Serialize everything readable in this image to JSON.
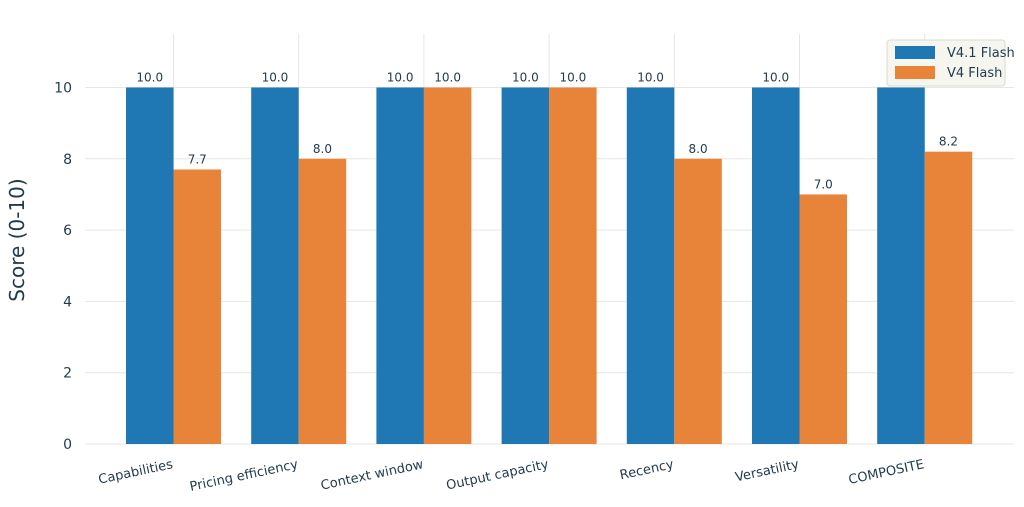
{
  "chart_data": {
    "type": "bar",
    "categories": [
      "Capabilities",
      "Pricing efficiency",
      "Context window",
      "Output capacity",
      "Recency",
      "Versatility",
      "COMPOSITE"
    ],
    "series": [
      {
        "name": "V4.1 Flash",
        "color": "#1f77b4",
        "values": [
          10.0,
          10.0,
          10.0,
          10.0,
          10.0,
          10.0,
          10.0
        ],
        "labels": [
          "10.0",
          "10.0",
          "10.0",
          "10.0",
          "10.0",
          "10.0",
          "10.0"
        ]
      },
      {
        "name": "V4 Flash",
        "color": "#e8833a",
        "values": [
          7.7,
          8.0,
          10.0,
          10.0,
          8.0,
          7.0,
          8.2
        ],
        "labels": [
          "7.7",
          "8.0",
          "10.0",
          "10.0",
          "8.0",
          "7.0",
          "8.2"
        ]
      }
    ],
    "title": "",
    "xlabel": "",
    "ylabel": "Score (0-10)",
    "ylim": [
      0,
      11.5
    ],
    "yticks": [
      0,
      2,
      4,
      6,
      8,
      10
    ],
    "ytick_labels": [
      "0",
      "2",
      "4",
      "6",
      "8",
      "10"
    ],
    "grid": true,
    "legend_position": "top-right",
    "xtick_rotation": "angled"
  }
}
